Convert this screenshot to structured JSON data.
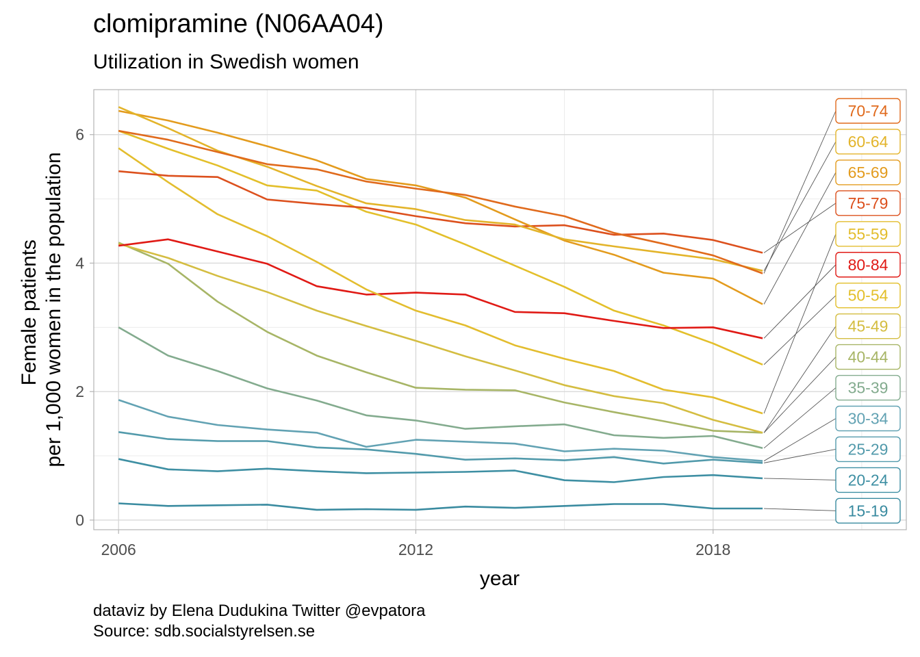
{
  "chart_data": {
    "type": "line",
    "title": "clomipramine (N06AA04)",
    "subtitle": "Utilization in Swedish women",
    "xlabel": "year",
    "ylabel_lines": [
      "Female patients",
      "per 1,000 women in the population"
    ],
    "caption_lines": [
      "dataviz by Elena Dudukina Twitter @evpatora",
      "Source: sdb.socialstyrelsen.se"
    ],
    "xlim": [
      2005.5,
      2021.9
    ],
    "ylim": [
      -0.15,
      6.7
    ],
    "x_ticks": [
      2006,
      2012,
      2018
    ],
    "y_ticks": [
      0,
      2,
      4,
      6
    ],
    "grid": true,
    "legend": "direct labels at right",
    "x": [
      2006,
      2007,
      2008,
      2009,
      2010,
      2011,
      2012,
      2013,
      2014,
      2015,
      2016,
      2017,
      2018,
      2019
    ],
    "series": [
      {
        "name": "70-74",
        "color": "#e06a1c",
        "values": [
          6.06,
          5.92,
          5.73,
          5.54,
          5.46,
          5.27,
          5.16,
          5.06,
          4.88,
          4.73,
          4.47,
          4.3,
          4.12,
          3.84
        ]
      },
      {
        "name": "60-64",
        "color": "#e3b42a",
        "values": [
          6.43,
          6.1,
          5.75,
          5.5,
          5.2,
          4.93,
          4.84,
          4.67,
          4.6,
          4.37,
          4.26,
          4.16,
          4.06,
          3.88
        ]
      },
      {
        "name": "65-69",
        "color": "#e39b1d",
        "values": [
          6.37,
          6.22,
          6.03,
          5.82,
          5.6,
          5.31,
          5.21,
          5.02,
          4.68,
          4.35,
          4.13,
          3.85,
          3.76,
          3.36
        ]
      },
      {
        "name": "75-79",
        "color": "#dc501d",
        "values": [
          5.43,
          5.36,
          5.34,
          4.99,
          4.92,
          4.86,
          4.73,
          4.62,
          4.57,
          4.59,
          4.44,
          4.46,
          4.36,
          4.16
        ]
      },
      {
        "name": "55-59",
        "color": "#e3bd2e",
        "values": [
          5.79,
          5.26,
          4.76,
          4.42,
          4.02,
          3.59,
          3.26,
          3.03,
          2.72,
          2.51,
          2.32,
          2.03,
          1.91,
          1.66
        ]
      },
      {
        "name": "80-84",
        "color": "#e01a15",
        "values": [
          4.27,
          4.37,
          4.18,
          3.99,
          3.64,
          3.51,
          3.54,
          3.51,
          3.24,
          3.22,
          3.1,
          2.99,
          3.0,
          2.83
        ]
      },
      {
        "name": "50-54",
        "color": "#e3bf2a",
        "values": [
          6.06,
          5.78,
          5.52,
          5.21,
          5.13,
          4.8,
          4.6,
          4.29,
          3.96,
          3.63,
          3.26,
          3.03,
          2.75,
          2.42
        ]
      },
      {
        "name": "45-49",
        "color": "#d4bd41",
        "values": [
          4.3,
          4.08,
          3.8,
          3.55,
          3.26,
          3.02,
          2.79,
          2.55,
          2.33,
          2.1,
          1.93,
          1.82,
          1.56,
          1.36
        ]
      },
      {
        "name": "40-44",
        "color": "#a7b566",
        "values": [
          4.32,
          3.99,
          3.4,
          2.93,
          2.56,
          2.3,
          2.06,
          2.03,
          2.02,
          1.83,
          1.68,
          1.54,
          1.39,
          1.36
        ]
      },
      {
        "name": "35-39",
        "color": "#83ab8e",
        "values": [
          3.0,
          2.56,
          2.32,
          2.05,
          1.86,
          1.63,
          1.55,
          1.42,
          1.46,
          1.49,
          1.32,
          1.28,
          1.31,
          1.12
        ]
      },
      {
        "name": "30-34",
        "color": "#62a2b3",
        "values": [
          1.87,
          1.61,
          1.48,
          1.41,
          1.36,
          1.14,
          1.25,
          1.22,
          1.19,
          1.07,
          1.11,
          1.08,
          0.98,
          0.92
        ]
      },
      {
        "name": "25-29",
        "color": "#529aab",
        "values": [
          1.37,
          1.26,
          1.23,
          1.23,
          1.13,
          1.1,
          1.03,
          0.94,
          0.96,
          0.93,
          0.98,
          0.88,
          0.94,
          0.89
        ]
      },
      {
        "name": "20-24",
        "color": "#3e8fa3",
        "values": [
          0.95,
          0.79,
          0.76,
          0.8,
          0.76,
          0.73,
          0.74,
          0.75,
          0.77,
          0.62,
          0.59,
          0.67,
          0.7,
          0.65
        ]
      },
      {
        "name": "15-19",
        "color": "#3a8ba0",
        "values": [
          0.26,
          0.22,
          0.23,
          0.24,
          0.16,
          0.17,
          0.16,
          0.21,
          0.19,
          0.22,
          0.25,
          0.25,
          0.18,
          0.18
        ]
      }
    ]
  }
}
